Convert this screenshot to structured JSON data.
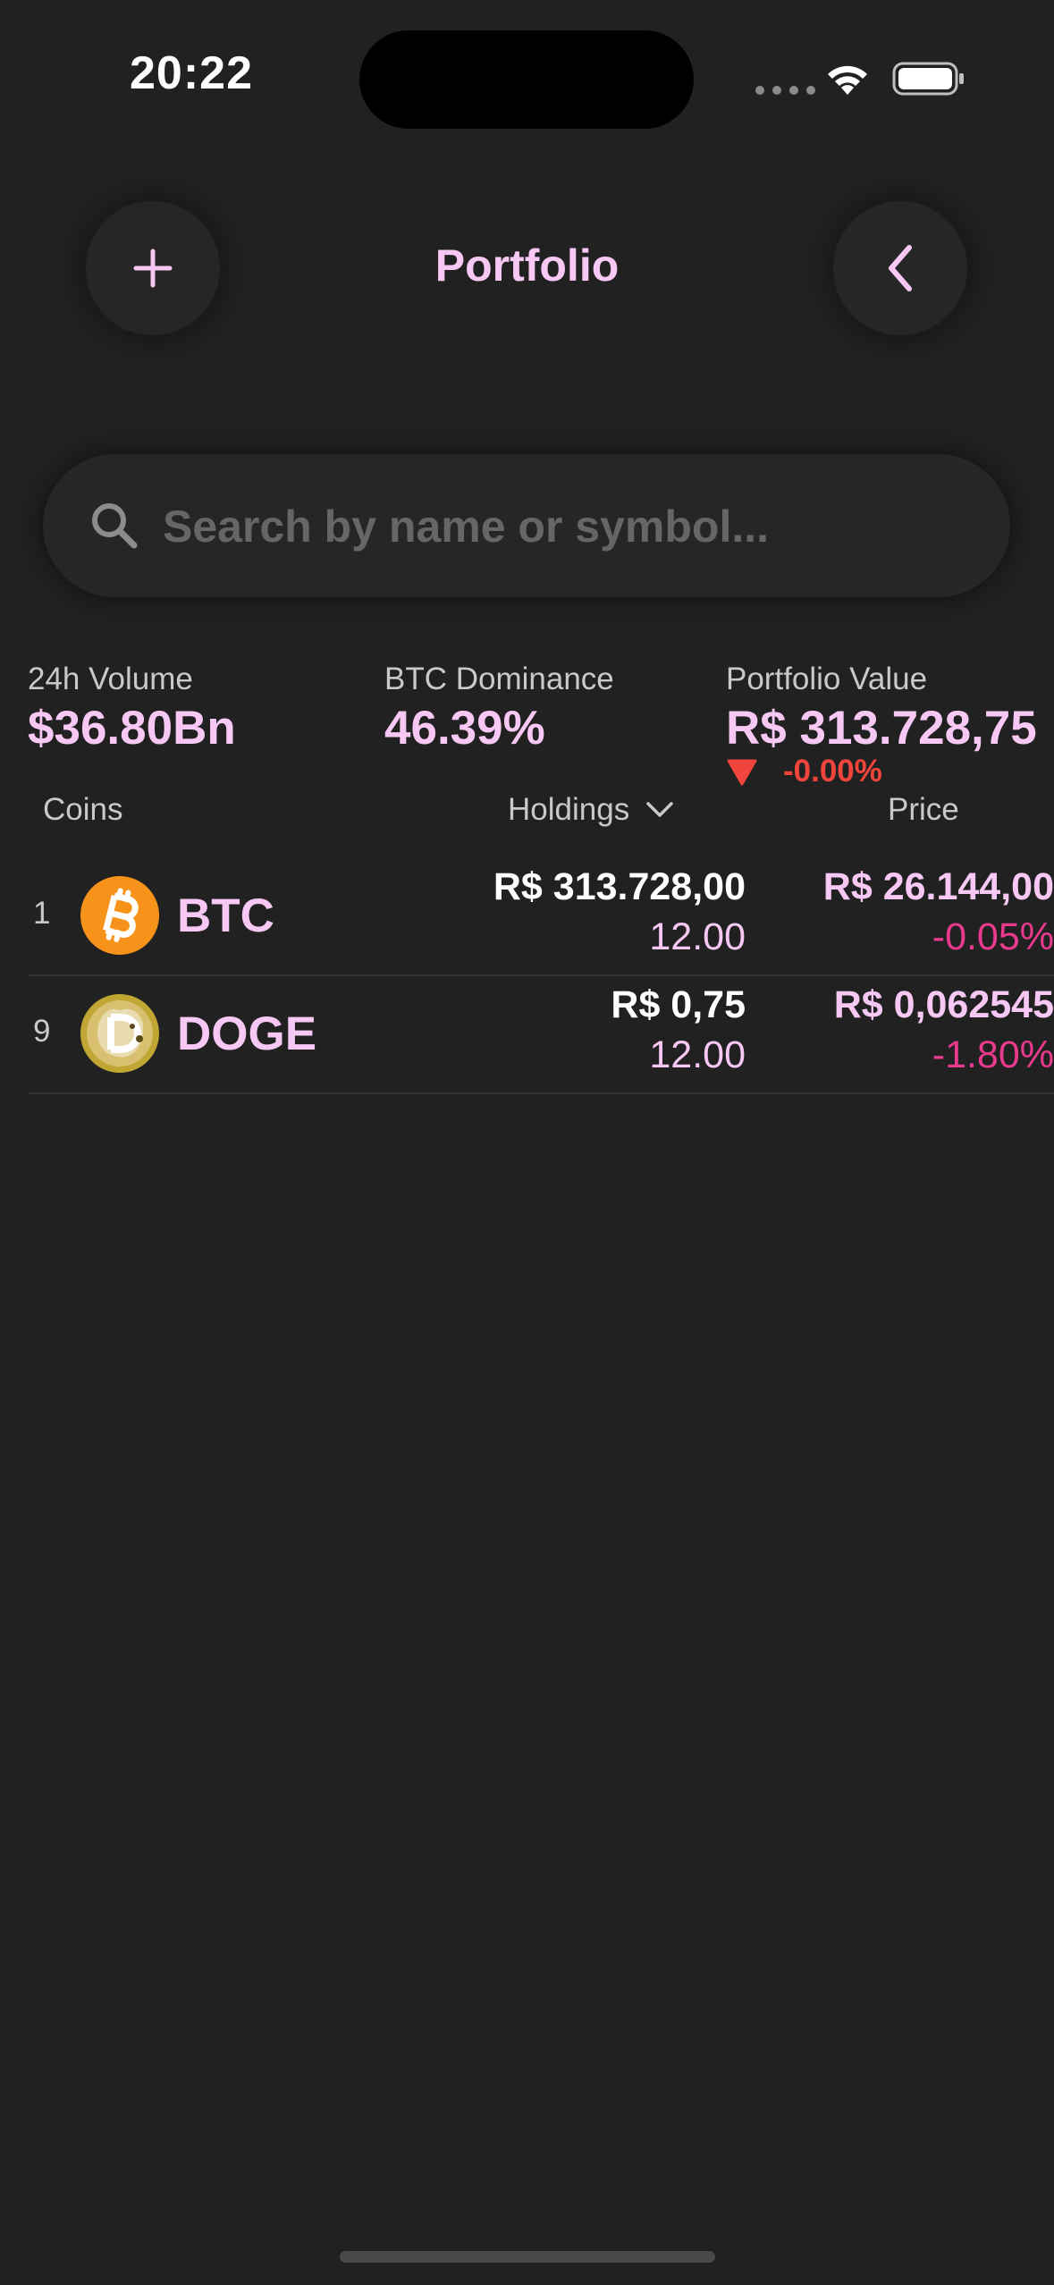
{
  "status_bar": {
    "time": "20:22"
  },
  "header": {
    "title": "Portfolio",
    "add_icon": "plus-icon",
    "back_icon": "chevron-left-icon"
  },
  "search": {
    "placeholder": "Search by name or symbol...",
    "value": ""
  },
  "stats": {
    "volume": {
      "label": "24h Volume",
      "value": "$36.80Bn"
    },
    "dominance": {
      "label": "BTC Dominance",
      "value": "46.39%"
    },
    "portfolio": {
      "label": "Portfolio Value",
      "value": "R$ 313.728,75",
      "change": "-0.00%"
    }
  },
  "columns": {
    "coins": "Coins",
    "holdings": "Holdings",
    "price": "Price"
  },
  "coins": [
    {
      "rank": "1",
      "symbol": "BTC",
      "logo": "bitcoin-logo",
      "holding_value": "R$ 313.728,00",
      "holding_amount": "12.00",
      "price": "R$ 26.144,00",
      "price_change": "-0.05%"
    },
    {
      "rank": "9",
      "symbol": "DOGE",
      "logo": "dogecoin-logo",
      "holding_value": "R$ 0,75",
      "holding_amount": "12.00",
      "price": "R$ 0,062545",
      "price_change": "-1.80%"
    }
  ],
  "colors": {
    "background": "#212121",
    "accent": "#f7c8f4",
    "negative": "#f0453c",
    "negative_pink": "#ea3a8e",
    "bitcoin": "#f7931a",
    "dogecoin": "#c2a633"
  }
}
